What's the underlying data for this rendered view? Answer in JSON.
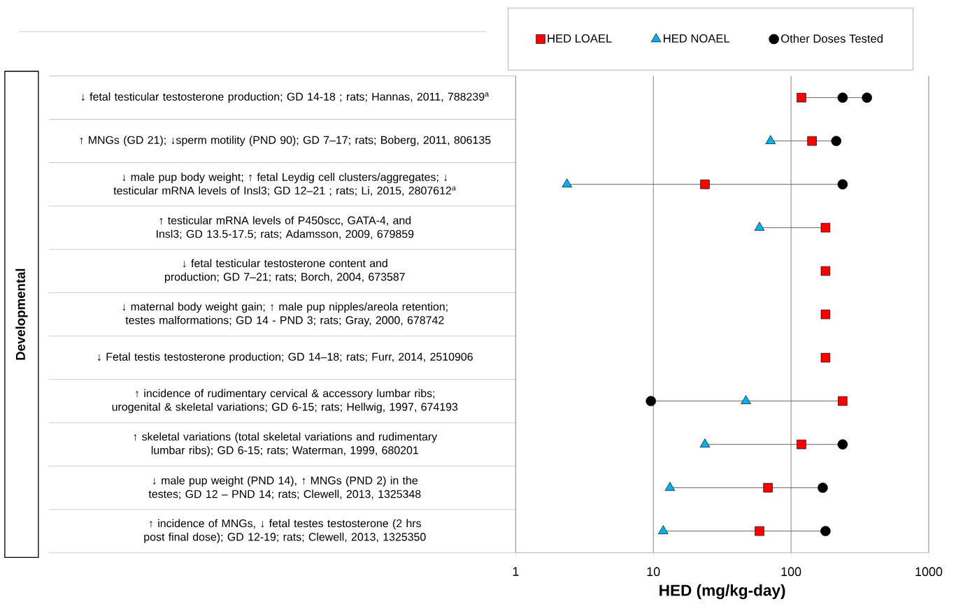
{
  "chart_data": {
    "type": "scatter",
    "orientation": "horizontal",
    "categories": [
      "↓ fetal testicular testosterone production; GD 14-18 ; rats; Hannas, 2011, 788239$^{a}$",
      "↑ MNGs (GD 21); ↓sperm motility (PND 90); GD 7–17; rats; Boberg, 2011, 806135",
      "↓ male pup body weight; ↑ fetal Leydig cell clusters/aggregates; ↓ testicular mRNA levels of Insl3; GD 12–21 ; rats; Li, 2015, 2807612$^{a}$",
      "↑ testicular mRNA levels of P450scc, GATA-4, and Insl3; GD 13.5-17.5; rats; Adamsson, 2009, 679859",
      "↓ fetal testicular testosterone content and production; GD 7–21; rats; Borch, 2004, 673587",
      "↓ maternal body weight gain; ↑ male pup nipples/areola retention; testes malformations; GD 14 - PND 3; rats;  Gray, 2000, 678742",
      "↓ Fetal testis testosterone production; GD 14–18; rats; Furr, 2014, 2510906",
      "↑ incidence of rudimentary cervical & accessory lumbar ribs; urogenital & skeletal variations; GD 6-15; rats; Hellwig, 1997, 674193",
      "↑ skeletal variations (total skeletal variations and rudimentary lumbar ribs); GD 6-15; rats; Waterman, 1999, 680201",
      "↓ male pup weight (PND 14), ↑ MNGs (PND 2) in the testes; GD 12 – PND 14; rats; Clewell, 2013, 1325348",
      "↑ incidence of MNGs, ↓ fetal testes testosterone (2 hrs post final dose); GD 12-19; rats; Clewell, 2013, 1325350"
    ],
    "series": [
      {
        "name": "HED LOAEL",
        "color": "#ff0000",
        "marker": "square",
        "values": [
          119,
          142,
          23.7,
          178,
          178,
          178,
          178,
          237,
          119,
          68,
          59
        ]
      },
      {
        "name": "HED NOAEL",
        "color": "#00b0f0",
        "marker": "triangle",
        "values": [
          null,
          71,
          2.36,
          59,
          null,
          null,
          null,
          47,
          23.7,
          13.2,
          11.8
        ]
      },
      {
        "name": "Other Doses Tested",
        "color": "#000000",
        "marker": "circle",
        "values": [
          237,
          213,
          237,
          null,
          null,
          null,
          null,
          9.6,
          237,
          170,
          178
        ]
      },
      {
        "color": "#000000",
        "marker": "circle",
        "values": [
          356,
          null,
          null,
          null,
          null,
          null,
          null,
          null,
          null,
          null,
          null
        ]
      }
    ],
    "xlabel": "HED (mg/kg-day)",
    "ylabel": "Developmental",
    "xlim": [
      1,
      1000
    ],
    "xticks": [
      1,
      10,
      100,
      1000
    ],
    "log": "x",
    "grid": "x",
    "legend": "top"
  }
}
